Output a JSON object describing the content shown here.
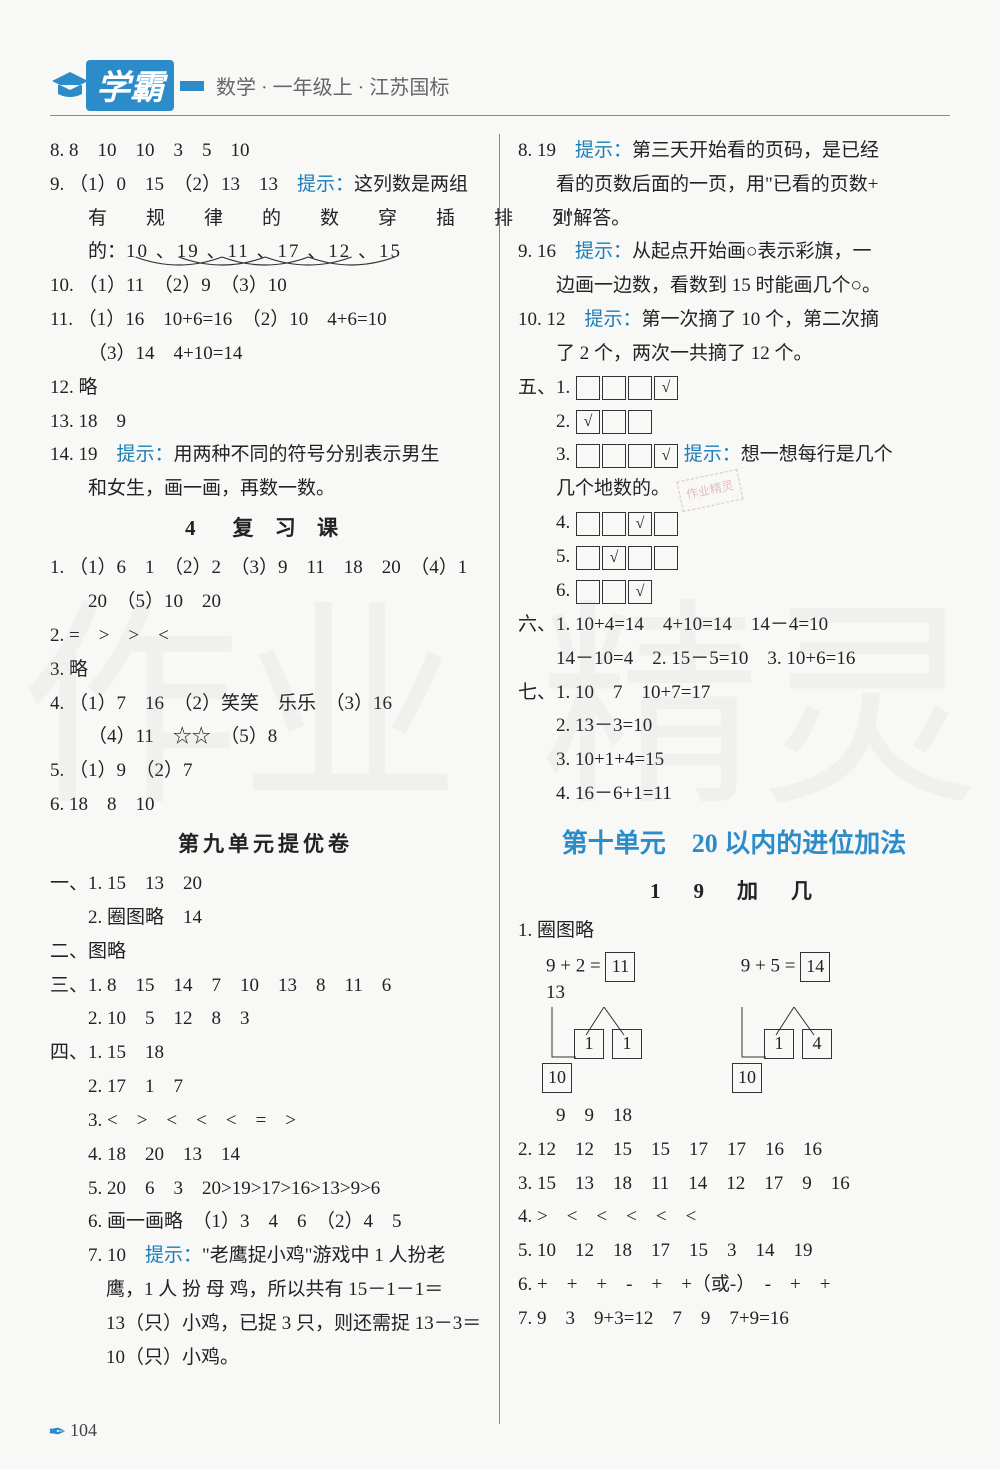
{
  "header": {
    "logo_text": "学霸",
    "sub": "数学 · 一年级上 · 江苏国标"
  },
  "page_number": "104",
  "colors": {
    "accent": "#2c8cc9",
    "hint": "#1a7db8",
    "text": "#222",
    "border": "#888"
  },
  "left": {
    "l1": "8. 8　10　10　3　5　10",
    "l2a": "9. （1）0　15　（2）13　13　",
    "l2hint": "提示：",
    "l2b": "这列数是两组",
    "l3": "有　规　律　的　数　穿　插　排　列",
    "l4a": "的：",
    "l4seq": "10 、19 、11 、17 、12 、15",
    "l5": "10. （1）11　（2）9　（3）10",
    "l6": "11. （1）16　10+6=16　（2）10　4+6=10",
    "l7": "（3）14　4+10=14",
    "l8": "12. 略",
    "l9": "13. 18　9",
    "l10a": "14. 19　",
    "l10hint": "提示：",
    "l10b": "用两种不同的符号分别表示男生",
    "l11": "和女生，画一画，再数一数。",
    "sec4": "4　复 习 课",
    "l12": "1. （1）6　1　（2）2　（3）9　11　18　20　（4）1",
    "l13": "20　（5）10　20",
    "l14": "2. =　>　>　<",
    "l15": "3. 略",
    "l16": "4. （1）7　16　（2）笑笑　乐乐　（3）16",
    "l17": "（4）11　☆☆　（5）8",
    "l18": "5. （1）9　（2）7",
    "l19": "6. 18　8　10",
    "sec9": "第九单元提优卷",
    "l20": "一、1. 15　13　20",
    "l21": "2. 圈图略　14",
    "l22": "二、图略",
    "l23": "三、1. 8　15　14　7　10　13　8　11　6",
    "l24": "2. 10　5　12　8　3",
    "l25": "四、1. 15　18",
    "l26": "2. 17　1　7",
    "l27": "3. <　>　<　<　<　=　>",
    "l28": "4. 18　20　13　14",
    "l29": "5. 20　6　3　20>19>17>16>13>9>6",
    "l30": "6. 画一画略　（1）3　4　6　（2）4　5",
    "l31a": "7. 10　",
    "l31hint": "提示：",
    "l31b": "\"老鹰捉小鸡\"游戏中 1 人扮老",
    "l32": "鹰，1 人 扮 母 鸡，所以共有 15－1－1＝",
    "l33": "13（只）小鸡，已捉 3 只，则还需捉 13－3＝",
    "l34": "10（只）小鸡。"
  },
  "right": {
    "r1a": "8. 19　",
    "r1hint": "提示：",
    "r1b": "第三天开始看的页码，是已经",
    "r2": "看的页数后面的一页，用\"已看的页数+",
    "r3": "1\"解答。",
    "r4a": "9. 16　",
    "r4hint": "提示：",
    "r4b": "从起点开始画○表示彩旗，一",
    "r5": "边画一边数，看数到 15 时能画几个○。",
    "r6a": "10. 12　",
    "r6hint": "提示：",
    "r6b": "第一次摘了 10 个，第二次摘",
    "r7": "了 2 个，两次一共摘了 12 个。",
    "five_label": "五、1.",
    "five2": "2.",
    "five3": "3.",
    "five3hint": "提示：",
    "five3b": "想一想每行是几个",
    "five3c": "几个地数的。",
    "five4": "4.",
    "five5": "5.",
    "five6": "6.",
    "boxrow1": [
      "",
      "",
      "",
      "√"
    ],
    "boxrow2": [
      "√",
      "",
      ""
    ],
    "boxrow3": [
      "",
      "",
      "",
      "√"
    ],
    "boxrow4": [
      "",
      "",
      "√",
      ""
    ],
    "boxrow5": [
      "",
      "√",
      "",
      ""
    ],
    "boxrow6": [
      "",
      "",
      "√"
    ],
    "r8": "六、1. 10+4=14　4+10=14　14－4=10",
    "r9": "14－10=4　2. 15－5=10　3. 10+6=16",
    "r10": "七、1. 10　7　10+7=17",
    "r11": "2. 13－3=10",
    "r12": "3. 10+1+4=15",
    "r13": "4. 16－6+1=11",
    "unit10": "第十单元　20 以内的进位加法",
    "sub1": "1　9　加　几",
    "r14": "1. 圈图略",
    "diag1": {
      "expr": "9  +  2  =",
      "ans": "11",
      "a": "1",
      "b": "1",
      "c": "10"
    },
    "diag2": {
      "expr": "9  +  5  =",
      "ans": "14",
      "a": "1",
      "b": "4",
      "c": "10",
      "tail": "13"
    },
    "r15": "9　9　18",
    "r16": "2. 12　12　15　15　17　17　16　16",
    "r17": "3. 15　13　18　11　14　12　17　9　16",
    "r18": "4. >　<　<　<　<　<",
    "r19": "5. 10　12　18　17　15　3　14　19",
    "r20": "6. +　+　+　-　+　+（或-）　-　+　+",
    "r21": "7. 9　3　9+3=12　7　9　7+9=16"
  }
}
